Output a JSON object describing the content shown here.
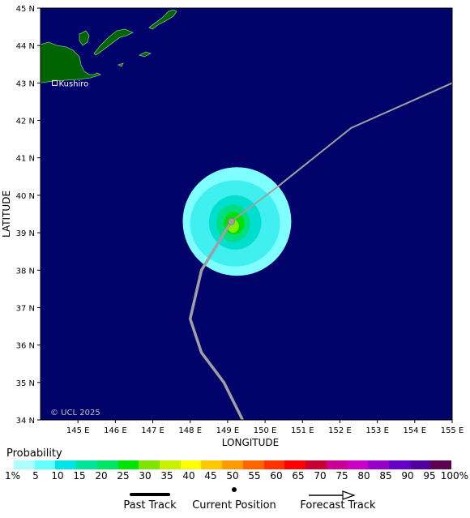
{
  "map": {
    "ocean_color": "#02026b",
    "land_color": "#006400",
    "track_color": "#a0a0a0",
    "axis_labels": {
      "x": "LONGITUDE",
      "y": "LATITUDE"
    },
    "lon_ticks": [
      "145 E",
      "146 E",
      "147 E",
      "148 E",
      "149 E",
      "150 E",
      "151 E",
      "152 E",
      "153 E",
      "154 E",
      "155 E"
    ],
    "lat_ticks": [
      "34 N",
      "35 N",
      "36 N",
      "37 N",
      "38 N",
      "39 N",
      "40 N",
      "41 N",
      "42 N",
      "43 N",
      "44 N",
      "45 N"
    ],
    "extent": {
      "lon": [
        144,
        155
      ],
      "lat": [
        34,
        45
      ]
    },
    "city": {
      "name": "Kushiro",
      "lon": 144.38,
      "lat": 43.0
    },
    "copyright": "© UCL 2025",
    "current_position": {
      "lon": 149.1,
      "lat": 39.3
    },
    "past_track": [
      {
        "lon": 149.4,
        "lat": 34.0
      },
      {
        "lon": 148.9,
        "lat": 35.0
      },
      {
        "lon": 148.3,
        "lat": 35.8
      },
      {
        "lon": 148.0,
        "lat": 36.7
      },
      {
        "lon": 148.3,
        "lat": 38.0
      },
      {
        "lon": 149.1,
        "lat": 39.3
      }
    ],
    "forecast_track": [
      {
        "lon": 149.1,
        "lat": 39.3
      },
      {
        "lon": 150.3,
        "lat": 40.2
      },
      {
        "lon": 152.3,
        "lat": 41.8
      },
      {
        "lon": 155.0,
        "lat": 43.0
      }
    ],
    "probability_rings": [
      {
        "color": "#7fffff",
        "lon": [
          147.8,
          150.7
        ],
        "lat": [
          37.85,
          40.75
        ]
      },
      {
        "color": "#40efef",
        "lon": [
          148.0,
          150.4
        ],
        "lat": [
          38.1,
          40.4
        ]
      },
      {
        "color": "#00dfcf",
        "lon": [
          148.5,
          149.9
        ],
        "lat": [
          38.55,
          40.0
        ]
      },
      {
        "color": "#00df7f",
        "lon": [
          148.7,
          149.6
        ],
        "lat": [
          38.75,
          39.75
        ]
      },
      {
        "color": "#00df00",
        "lon": [
          148.9,
          149.45
        ],
        "lat": [
          38.95,
          39.55
        ]
      },
      {
        "color": "#7fef00",
        "lon": [
          149.0,
          149.3
        ],
        "lat": [
          39.0,
          39.35
        ]
      }
    ]
  },
  "legend": {
    "title": "Probability",
    "labels": [
      "1%",
      "5",
      "10",
      "15",
      "20",
      "25",
      "30",
      "35",
      "40",
      "45",
      "50",
      "55",
      "60",
      "65",
      "70",
      "75",
      "80",
      "85",
      "90",
      "95",
      "100%"
    ],
    "colors": [
      "#aaffff",
      "#66ffff",
      "#00e5e5",
      "#00e59a",
      "#00e564",
      "#00e500",
      "#7fe500",
      "#c8f000",
      "#ffff00",
      "#ffc800",
      "#ff9b00",
      "#ff6400",
      "#ff3200",
      "#ff0000",
      "#c80032",
      "#c80096",
      "#c800c8",
      "#9600c8",
      "#6400c8",
      "#5000a0",
      "#600050"
    ]
  },
  "key": {
    "past_label": "Past Track",
    "current_label": "Current Position",
    "forecast_label": "Forecast Track"
  }
}
